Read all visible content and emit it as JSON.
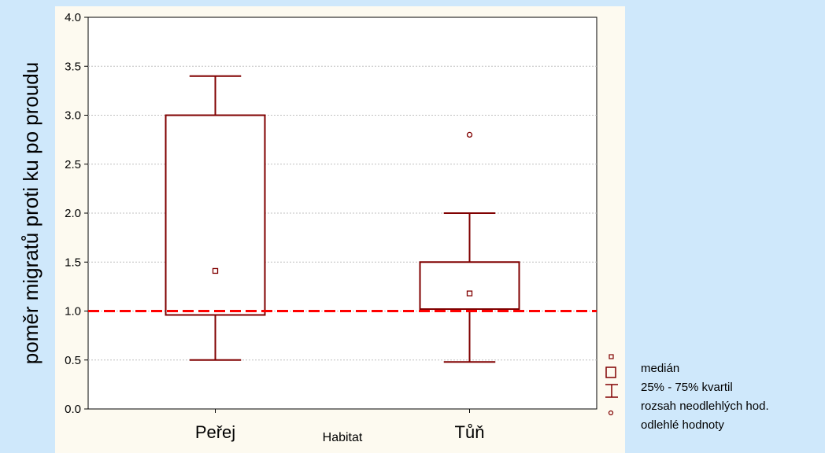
{
  "chart_data": {
    "type": "boxplot",
    "title": "",
    "xlabel": "Habitat",
    "ylabel": "poměr migratů proti ku po proudu",
    "ylim": [
      0,
      4
    ],
    "yticks": [
      "0.0",
      "0.5",
      "1.0",
      "1.5",
      "2.0",
      "2.5",
      "3.0",
      "3.5",
      "4.0"
    ],
    "grid": true,
    "categories": [
      "Peřej",
      "Tůň"
    ],
    "boxes": [
      {
        "category": "Peřej",
        "median": 1.41,
        "q1": 0.96,
        "q3": 3.0,
        "whisker_low": 0.5,
        "whisker_high": 3.4,
        "outliers": []
      },
      {
        "category": "Tůň",
        "median": 1.18,
        "q1": 1.02,
        "q3": 1.5,
        "whisker_low": 0.48,
        "whisker_high": 2.0,
        "outliers": [
          2.8
        ]
      }
    ],
    "reference_line": {
      "y": 1.0,
      "style": "dashed",
      "color": "#ff0000"
    },
    "colors": {
      "box": "#800000",
      "background": "#fdfaf0",
      "page": "#cfe8fb",
      "grid": "#c0c0c0"
    }
  },
  "legend": {
    "items": [
      {
        "symbol": "small-square-icon",
        "label": "medián"
      },
      {
        "symbol": "box-icon",
        "label": "25% - 75% kvartil"
      },
      {
        "symbol": "whisker-icon",
        "label": "rozsah neodlehlých hod."
      },
      {
        "symbol": "outlier-circle-icon",
        "label": "odlehlé hodnoty"
      }
    ]
  }
}
